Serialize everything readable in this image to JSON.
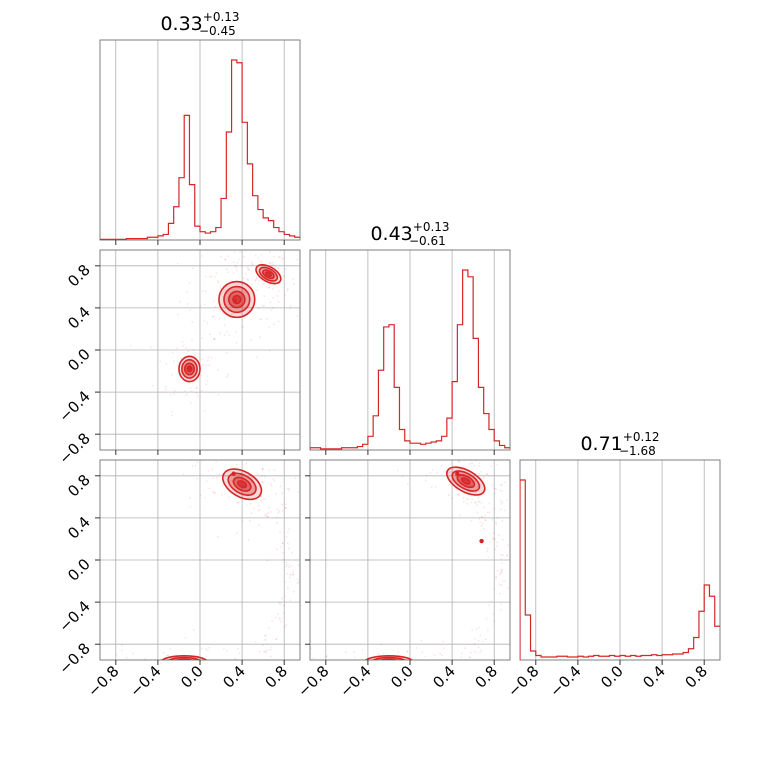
{
  "chart_data": {
    "type": "corner",
    "color": "#d62728",
    "parameters": [
      {
        "title_value": "0.33",
        "title_upper": "+0.13",
        "title_lower": "−0.45"
      },
      {
        "title_value": "0.43",
        "title_upper": "+0.13",
        "title_lower": "−0.61"
      },
      {
        "title_value": "0.71",
        "title_upper": "+0.12",
        "title_lower": "−1.68"
      }
    ],
    "axis_range": [
      -0.95,
      0.95
    ],
    "tick_values": [
      -0.8,
      -0.4,
      0.0,
      0.4,
      0.8
    ],
    "tick_labels": [
      "−0.8",
      "−0.4",
      "0.0",
      "0.4",
      "0.8"
    ],
    "grid": true,
    "histograms": [
      {
        "bin_edges": [
          -0.95,
          -0.9,
          -0.85,
          -0.8,
          -0.75,
          -0.7,
          -0.65,
          -0.6,
          -0.55,
          -0.5,
          -0.45,
          -0.4,
          -0.35,
          -0.3,
          -0.25,
          -0.2,
          -0.15,
          -0.1,
          -0.05,
          0.0,
          0.05,
          0.1,
          0.15,
          0.2,
          0.25,
          0.3,
          0.35,
          0.4,
          0.45,
          0.5,
          0.55,
          0.6,
          0.65,
          0.7,
          0.75,
          0.8,
          0.85,
          0.9,
          0.95
        ],
        "counts": [
          0.5,
          0.5,
          0.5,
          0.5,
          0.5,
          1,
          1,
          1,
          1,
          2,
          2,
          3,
          4,
          12,
          24,
          45,
          90,
          40,
          10,
          6,
          5,
          6,
          9,
          30,
          78,
          130,
          128,
          85,
          55,
          32,
          22,
          16,
          14,
          9,
          6,
          4,
          3,
          2
        ]
      },
      {
        "bin_edges": [
          -0.95,
          -0.9,
          -0.85,
          -0.8,
          -0.75,
          -0.7,
          -0.65,
          -0.6,
          -0.55,
          -0.5,
          -0.45,
          -0.4,
          -0.35,
          -0.3,
          -0.25,
          -0.2,
          -0.15,
          -0.1,
          -0.05,
          0.0,
          0.05,
          0.1,
          0.15,
          0.2,
          0.25,
          0.3,
          0.35,
          0.4,
          0.45,
          0.5,
          0.55,
          0.6,
          0.65,
          0.7,
          0.75,
          0.8,
          0.85,
          0.9,
          0.95
        ],
        "counts": [
          2,
          2,
          1,
          1,
          1,
          1,
          2,
          2,
          2,
          3,
          5,
          12,
          30,
          70,
          108,
          110,
          55,
          18,
          8,
          6,
          6,
          5,
          6,
          7,
          8,
          12,
          28,
          60,
          110,
          158,
          152,
          98,
          55,
          32,
          18,
          8,
          4,
          2
        ]
      },
      {
        "bin_edges": [
          -0.95,
          -0.9,
          -0.85,
          -0.8,
          -0.75,
          -0.7,
          -0.65,
          -0.6,
          -0.55,
          -0.5,
          -0.45,
          -0.4,
          -0.35,
          -0.3,
          -0.25,
          -0.2,
          -0.15,
          -0.1,
          -0.05,
          0.0,
          0.05,
          0.1,
          0.15,
          0.2,
          0.25,
          0.3,
          0.35,
          0.4,
          0.45,
          0.5,
          0.55,
          0.6,
          0.65,
          0.7,
          0.75,
          0.8,
          0.85,
          0.9,
          0.95
        ],
        "counts": [
          240,
          60,
          12,
          6,
          4,
          4,
          4,
          5,
          5,
          4,
          4,
          5,
          4,
          5,
          6,
          5,
          5,
          6,
          5,
          6,
          5,
          6,
          5,
          6,
          6,
          7,
          6,
          7,
          7,
          8,
          8,
          10,
          15,
          30,
          65,
          100,
          85,
          45
        ]
      }
    ],
    "pair_panels": [
      {
        "x_param": 0,
        "y_param": 1,
        "regions": [
          {
            "cx": 0.35,
            "cy": 0.48,
            "rx": 0.17,
            "ry": 0.17,
            "angle": 0
          },
          {
            "cx": -0.1,
            "cy": -0.18,
            "rx": 0.1,
            "ry": 0.12,
            "angle": 0
          },
          {
            "cx": 0.65,
            "cy": 0.72,
            "rx": 0.13,
            "ry": 0.07,
            "angle": -30
          }
        ],
        "peaks": [
          [
            0.33,
            0.47
          ],
          [
            -0.1,
            -0.17
          ]
        ]
      },
      {
        "x_param": 0,
        "y_param": 2,
        "regions": [
          {
            "cx": 0.4,
            "cy": 0.72,
            "rx": 0.2,
            "ry": 0.12,
            "angle": -30
          },
          {
            "cx": -0.15,
            "cy": -0.97,
            "rx": 0.22,
            "ry": 0.06,
            "angle": 0
          }
        ],
        "peaks": [
          [
            0.32,
            0.82
          ],
          [
            -0.18,
            -0.98
          ]
        ]
      },
      {
        "x_param": 1,
        "y_param": 2,
        "regions": [
          {
            "cx": 0.53,
            "cy": 0.75,
            "rx": 0.2,
            "ry": 0.1,
            "angle": -30
          },
          {
            "cx": -0.2,
            "cy": -0.97,
            "rx": 0.23,
            "ry": 0.06,
            "angle": 0
          }
        ],
        "peaks": [
          [
            0.45,
            0.82
          ],
          [
            -0.2,
            -0.98
          ],
          [
            0.68,
            0.18
          ]
        ]
      }
    ]
  }
}
